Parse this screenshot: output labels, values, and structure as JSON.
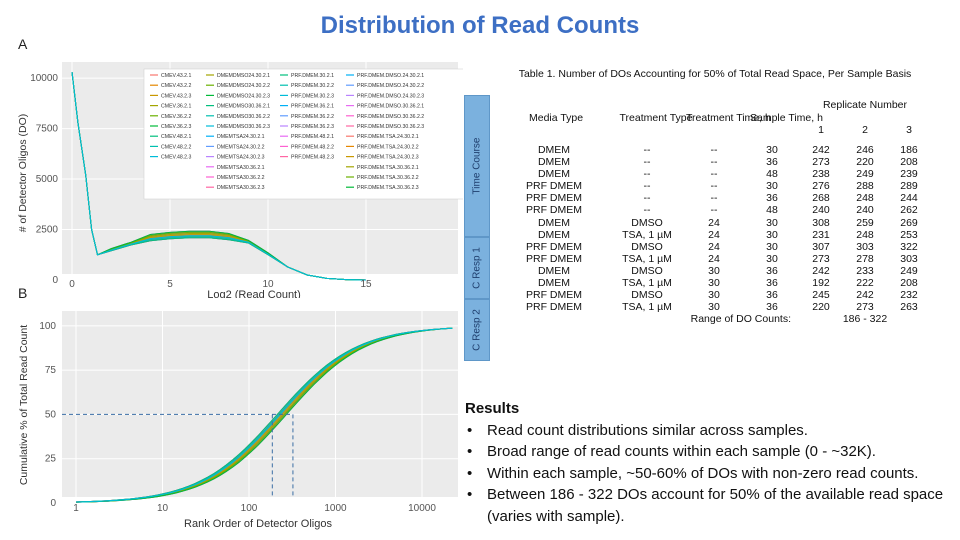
{
  "title": "Distribution of Read Counts",
  "panels": {
    "a": "A",
    "b": "B"
  },
  "plot_a": {
    "ylabel": "# of Detector Oligos (DO)",
    "xlabel": "Log2 (Read Count)",
    "yticks": [
      "10000",
      "7500",
      "5000",
      "2500",
      "0"
    ],
    "xticks": [
      "0",
      "5",
      "10",
      "15"
    ],
    "legend_col1": [
      "CMEV.43.2.1",
      "CMEV.43.2.2",
      "CMEV.43.2.3",
      "CMEV.36.2.1",
      "CMEV.36.2.2",
      "CMEV.36.2.3",
      "CMEV.48.2.1",
      "CMEV.48.2.2",
      "CMEV.48.2.3"
    ],
    "legend_col2": [
      "DMEMDMSO24.30.2.1",
      "DMEMDMSO24.30.2.2",
      "DMEMDMSO24.30.2.3",
      "DMEMDMSO30.36.2.1",
      "DMEMDMSO30.36.2.2",
      "DMEMDMSO30.36.2.3",
      "DMEMTSA24.30.2.1",
      "DMEMTSA24.30.2.2",
      "DMEMTSA24.30.2.3",
      "DMEMTSA30.36.2.1",
      "DMEMTSA30.36.2.2",
      "DMEMTSA30.36.2.3"
    ],
    "legend_col3": [
      "PRF.DMEM.30.2.1",
      "PRF.DMEM.30.2.2",
      "PRF.DMEM.30.2.3",
      "PRF.DMEM.36.2.1",
      "PRF.DMEM.36.2.2",
      "PRF.DMEM.36.2.3",
      "PRF.DMEM.48.2.1",
      "PRF.DMEM.48.2.2",
      "PRF.DMEM.48.2.3"
    ],
    "legend_col4": [
      "PRF.DMEM.DMSO.24.30.2.1",
      "PRF.DMEM.DMSO.24.30.2.2",
      "PRF.DMEM.DMSO.24.30.2.3",
      "PRF.DMEM.DMSO.30.36.2.1",
      "PRF.DMEM.DMSO.30.36.2.2",
      "PRF.DMEM.DMSO.30.36.2.3",
      "PRF.DMEM.TSA.24.30.2.1",
      "PRF.DMEM.TSA.24.30.2.2",
      "PRF.DMEM.TSA.24.30.2.3",
      "PRF.DMEM.TSA.30.36.2.1",
      "PRF.DMEM.TSA.30.36.2.2",
      "PRF.DMEM.TSA.30.36.2.3"
    ]
  },
  "plot_b": {
    "ylabel": "Cumulative % of Total Read Count",
    "xlabel": "Rank Order of Detector Oligos",
    "yticks": [
      "100",
      "75",
      "50",
      "25",
      "0"
    ],
    "xticks": [
      "1",
      "10",
      "100",
      "1000",
      "10000"
    ]
  },
  "table": {
    "caption": "Table 1. Number of DOs Accounting for 50% of Total Read Space, Per Sample Basis",
    "headers": {
      "media": "Media Type",
      "treatment": "Treatment Type",
      "treatment_time": "Treatment Time, h",
      "sample_time": "Sample Time, h",
      "replicate": "Replicate Number",
      "rep1": "1",
      "rep2": "2",
      "rep3": "3"
    },
    "groups": [
      "Time Course",
      "C Resp 1",
      "C Resp 2"
    ],
    "rows": [
      [
        "DMEM",
        "--",
        "--",
        "30",
        "242",
        "246",
        "186"
      ],
      [
        "DMEM",
        "--",
        "--",
        "36",
        "273",
        "220",
        "208"
      ],
      [
        "DMEM",
        "--",
        "--",
        "48",
        "238",
        "249",
        "239"
      ],
      [
        "PRF DMEM",
        "--",
        "--",
        "30",
        "276",
        "288",
        "289"
      ],
      [
        "PRF DMEM",
        "--",
        "--",
        "36",
        "268",
        "248",
        "244"
      ],
      [
        "PRF DMEM",
        "--",
        "--",
        "48",
        "240",
        "240",
        "262"
      ],
      [
        "DMEM",
        "DMSO",
        "24",
        "30",
        "308",
        "259",
        "269"
      ],
      [
        "DMEM",
        "TSA, 1 µM",
        "24",
        "30",
        "231",
        "248",
        "253"
      ],
      [
        "PRF DMEM",
        "DMSO",
        "24",
        "30",
        "307",
        "303",
        "322"
      ],
      [
        "PRF DMEM",
        "TSA, 1 µM",
        "24",
        "30",
        "273",
        "278",
        "303"
      ],
      [
        "DMEM",
        "DMSO",
        "30",
        "36",
        "242",
        "233",
        "249"
      ],
      [
        "DMEM",
        "TSA, 1 µM",
        "30",
        "36",
        "192",
        "222",
        "208"
      ],
      [
        "PRF DMEM",
        "DMSO",
        "30",
        "36",
        "245",
        "242",
        "232"
      ],
      [
        "PRF DMEM",
        "TSA, 1 µM",
        "30",
        "36",
        "220",
        "273",
        "263"
      ]
    ],
    "range_label": "Range of DO Counts:",
    "range_value": "186 - 322"
  },
  "results": {
    "heading": "Results",
    "bullet": "•",
    "items": [
      "Read count distributions similar across samples.",
      "Broad range of read counts within each sample (0 - ~32K).",
      "Within each sample, ~50-60% of DOs with non-zero read counts.",
      "Between 186 - 322 DOs account for 50% of the available read space (varies with sample)."
    ]
  }
}
